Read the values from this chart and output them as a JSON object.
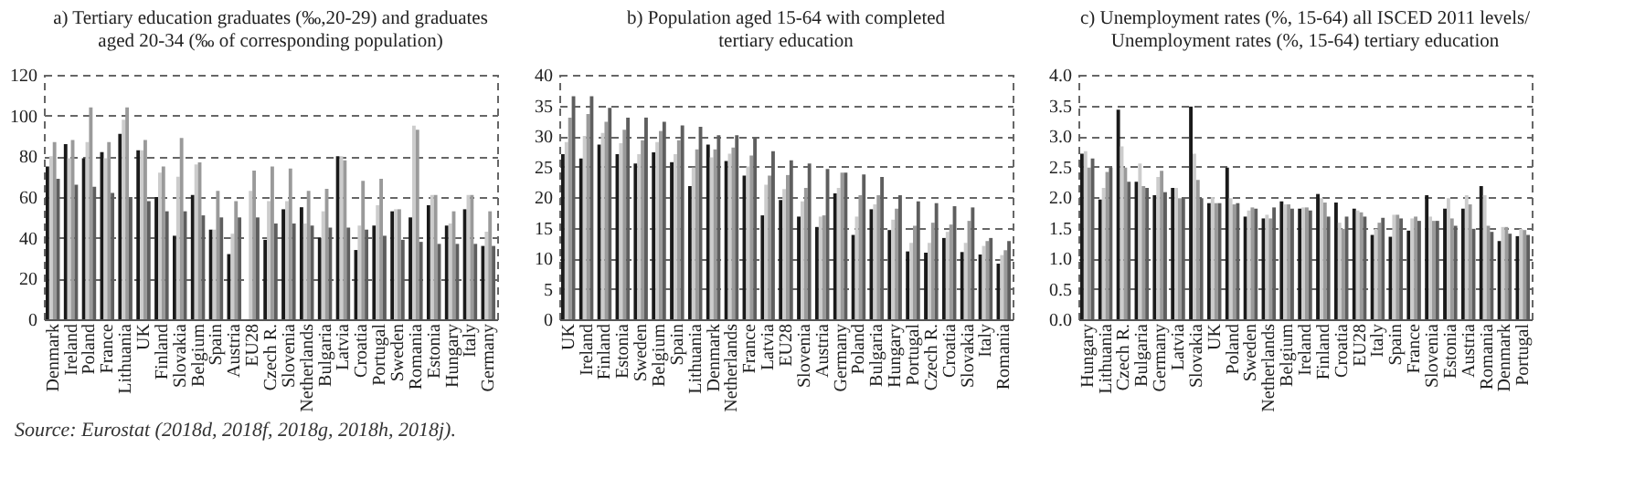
{
  "chart_data": [
    {
      "type": "bar",
      "title": "a) Tertiary education graduates (‰,20-29) and graduates\naged 20-34 (‰ of corresponding population)",
      "categories": [
        "Denmark",
        "Ireland",
        "Poland",
        "France",
        "Lithuania",
        "UK",
        "Finland",
        "Slovakia",
        "Belgium",
        "Spain",
        "Austria",
        "EU28",
        "Czech R.",
        "Slovenia",
        "Netherlands",
        "Bulgaria",
        "Latvia",
        "Croatia",
        "Portugal",
        "Sweden",
        "Romania",
        "Estonia",
        "Hungary",
        "Italy",
        "Germany"
      ],
      "series": [
        {
          "color": "#1a1a1a",
          "values": [
            75,
            86,
            79,
            82,
            91,
            83,
            60,
            41,
            61,
            44,
            32,
            null,
            39,
            54,
            55,
            40,
            80,
            34,
            46,
            53,
            50,
            56,
            46,
            54,
            36
          ]
        },
        {
          "color": "#cccccc",
          "values": [
            80,
            79,
            87,
            79,
            98,
            83,
            72,
            70,
            76,
            44,
            42,
            63,
            58,
            58,
            47,
            53,
            80,
            46,
            56,
            54,
            95,
            61,
            47,
            61,
            43
          ]
        },
        {
          "color": "#9a9a9a",
          "values": [
            87,
            88,
            104,
            87,
            104,
            88,
            75,
            89,
            77,
            63,
            58,
            73,
            75,
            74,
            63,
            64,
            78,
            68,
            69,
            54,
            93,
            61,
            53,
            61,
            53
          ]
        },
        {
          "color": "#5e5e5e",
          "values": [
            69,
            66,
            65,
            62,
            60,
            58,
            53,
            53,
            51,
            50,
            50,
            50,
            47,
            47,
            46,
            45,
            45,
            44,
            41,
            39,
            38,
            37,
            37,
            37,
            36
          ]
        }
      ],
      "ylim": [
        0,
        120
      ],
      "yticks": [
        0,
        20,
        40,
        60,
        80,
        100,
        120
      ],
      "grid": "y",
      "annotations": [
        "Source: Eurostat (2018d, 2018f, 2018g, 2018h, 2018j)."
      ]
    },
    {
      "type": "bar",
      "title": "b) Population aged 15-64 with completed\ntertiary education",
      "categories": [
        "UK",
        "Ireland",
        "Finland",
        "Estonia",
        "Sweden",
        "Belgium",
        "Spain",
        "Lithuania",
        "Denmark",
        "Netherlands",
        "France",
        "Latvia",
        "EU28",
        "Slovenia",
        "Austria",
        "Germany",
        "Poland",
        "Bulgaria",
        "Hungary",
        "Portugal",
        "Czech R.",
        "Croatia",
        "Slovakia",
        "Italy",
        "Romania"
      ],
      "series": [
        {
          "color": "#1a1a1a",
          "values": [
            27,
            26.3,
            28.6,
            27,
            25.5,
            27.3,
            25.7,
            21.8,
            28.6,
            25.9,
            23.5,
            17,
            19.5,
            16.8,
            15.1,
            20.6,
            13.8,
            18,
            14.6,
            11.1,
            10.9,
            13.3,
            11,
            10.6,
            9.1
          ]
        },
        {
          "color": "#cccccc",
          "values": [
            29,
            30,
            30.5,
            28.8,
            27,
            29,
            27,
            24.8,
            26.5,
            27.1,
            25,
            22,
            21.3,
            19.3,
            16.8,
            21.5,
            16.8,
            18.8,
            16.3,
            12.5,
            12.5,
            14.3,
            12.5,
            12,
            10.5
          ]
        },
        {
          "color": "#9a9a9a",
          "values": [
            33,
            33.6,
            32.3,
            31,
            29.3,
            30.8,
            29.3,
            27.8,
            27.8,
            28.1,
            26.8,
            23.5,
            23.6,
            21.5,
            17,
            24,
            20.3,
            20.3,
            18.1,
            15.3,
            15.8,
            15.5,
            16.1,
            12.8,
            11.3
          ]
        },
        {
          "color": "#5e5e5e",
          "values": [
            36.5,
            36.5,
            34.6,
            33,
            33,
            32.3,
            31.7,
            31.5,
            30.1,
            30.1,
            29.7,
            27.5,
            26,
            25.5,
            24.6,
            24,
            23.7,
            23.3,
            20.3,
            19.3,
            19,
            18.5,
            18.3,
            13.3,
            12.8
          ]
        }
      ],
      "ylim": [
        0,
        40
      ],
      "yticks": [
        0,
        5,
        10,
        15,
        20,
        25,
        30,
        35,
        40
      ],
      "grid": "y"
    },
    {
      "type": "bar",
      "title": "c) Unemployment rates (%, 15-64) all ISCED 2011 levels/\nUnemployment rates (%, 15-64) tertiary education",
      "categories": [
        "Hungary",
        "Lithuania",
        "Czech R.",
        "Bulgaria",
        "Germany",
        "Latvia",
        "Slovakia",
        "UK",
        "Poland",
        "Sweden",
        "Netherlands",
        "Belgium",
        "Ireland",
        "Finland",
        "Croatia",
        "EU28",
        "Italy",
        "Spain",
        "France",
        "Slovenia",
        "Estonia",
        "Austria",
        "Romania",
        "Denmark",
        "Portugal"
      ],
      "series": [
        {
          "color": "#1a1a1a",
          "values": [
            2.71,
            1.96,
            3.43,
            2.25,
            2.03,
            2.15,
            3.48,
            1.9,
            2.48,
            1.68,
            1.65,
            1.93,
            1.81,
            2.05,
            1.91,
            1.81,
            1.38,
            1.35,
            1.45,
            2.03,
            1.81,
            1.81,
            2.18,
            1.28,
            1.36
          ]
        },
        {
          "color": "#cccccc",
          "values": [
            2.75,
            2.15,
            2.83,
            2.55,
            2.33,
            2.15,
            2.71,
            2,
            1.98,
            1.78,
            1.71,
            1.88,
            1.83,
            1.98,
            1.58,
            1.78,
            1.48,
            1.71,
            1.65,
            1.68,
            1.98,
            2.03,
            2.03,
            1.51,
            1.48
          ]
        },
        {
          "color": "#9a9a9a",
          "values": [
            2.48,
            2.41,
            2.48,
            2.18,
            2.43,
            1.98,
            2.28,
            1.9,
            1.88,
            1.83,
            1.65,
            1.88,
            1.83,
            1.91,
            1.48,
            1.75,
            1.58,
            1.71,
            1.68,
            1.61,
            1.65,
            1.88,
            1.53,
            1.51,
            1.46
          ]
        },
        {
          "color": "#5e5e5e",
          "values": [
            2.63,
            2.48,
            2.25,
            2.15,
            2.08,
            1.98,
            1.98,
            1.9,
            1.9,
            1.81,
            1.83,
            1.81,
            1.78,
            1.68,
            1.68,
            1.68,
            1.66,
            1.65,
            1.61,
            1.61,
            1.53,
            1.48,
            1.43,
            1.4,
            1.38
          ]
        }
      ],
      "ylim": [
        0,
        4
      ],
      "yticks": [
        {
          "value": 0,
          "label": "0.0"
        },
        {
          "value": 0.5,
          "label": "0.5"
        },
        {
          "value": 1,
          "label": "1.0"
        },
        {
          "value": 1.5,
          "label": "1.5"
        },
        {
          "value": 2,
          "label": "2.0"
        },
        {
          "value": 2.5,
          "label": "2.5"
        },
        {
          "value": 3,
          "label": "3.0"
        },
        {
          "value": 3.5,
          "label": "3.5"
        },
        {
          "value": 4,
          "label": "4.0"
        }
      ],
      "grid": "y"
    }
  ]
}
